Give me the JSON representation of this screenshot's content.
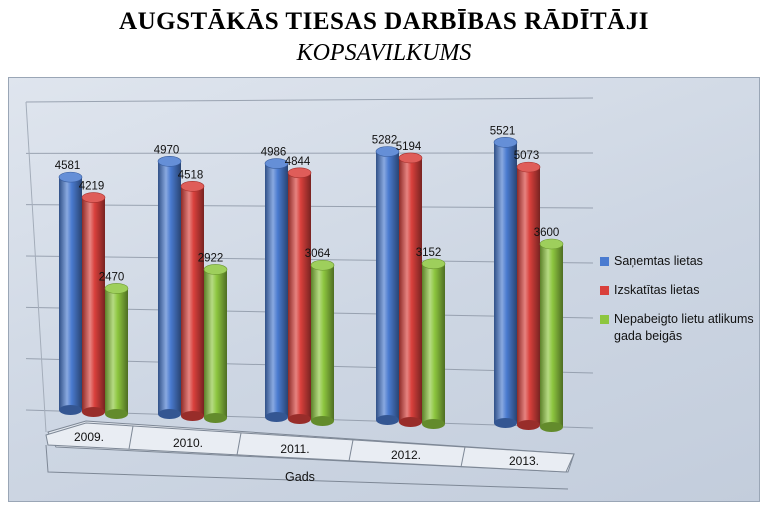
{
  "header": {
    "title": "AUGSTĀKĀS TIESAS DARBĪBAS RĀDĪTĀJI",
    "subtitle": "KOPSAVILKUMS"
  },
  "chart_data": {
    "type": "bar",
    "categories": [
      "2009.",
      "2010.",
      "2011.",
      "2012.",
      "2013."
    ],
    "series": [
      {
        "name": "Saņemtas lietas",
        "values": [
          4581,
          4970,
          4986,
          5282,
          5521
        ],
        "color": "#4a7bd0"
      },
      {
        "name": "Izskatītas lietas",
        "values": [
          4219,
          4518,
          4844,
          5194,
          5073
        ],
        "color": "#d9403c"
      },
      {
        "name": "Nepabeigto lietu atlikums gada beigās",
        "values": [
          2470,
          2922,
          3064,
          3152,
          3600
        ],
        "color": "#8dc63f"
      }
    ],
    "xlabel": "Gads",
    "ylim": [
      0,
      6000
    ],
    "grid": true,
    "legend": "right",
    "style": "3d-cylinder"
  }
}
